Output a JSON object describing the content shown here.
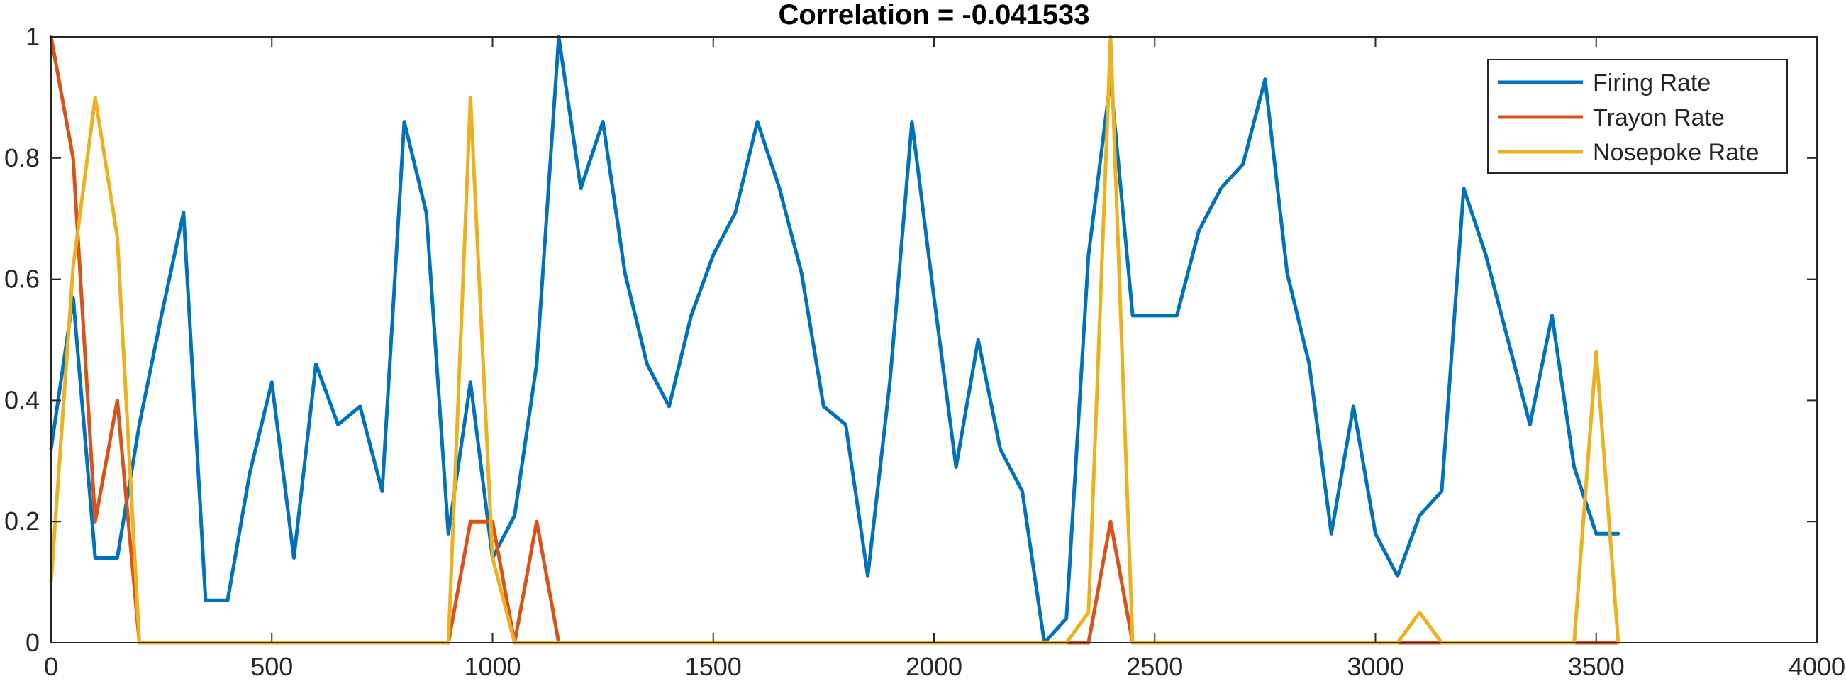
{
  "chart_data": {
    "type": "line",
    "title": "Correlation = -0.041533",
    "xlabel": "",
    "ylabel": "",
    "xlim": [
      0,
      4000
    ],
    "ylim": [
      0,
      1
    ],
    "xticks": [
      0,
      500,
      1000,
      1500,
      2000,
      2500,
      3000,
      3500,
      4000
    ],
    "xtick_labels": [
      "0",
      "500",
      "1000",
      "1500",
      "2000",
      "2500",
      "3000",
      "3500",
      "4000"
    ],
    "yticks": [
      0,
      0.2,
      0.4,
      0.6,
      0.8,
      1
    ],
    "ytick_labels": [
      "0",
      "0.2",
      "0.4",
      "0.6",
      "0.8",
      "1"
    ],
    "grid": false,
    "legend_position": "top-right",
    "x": [
      0,
      50,
      100,
      150,
      200,
      250,
      300,
      350,
      400,
      450,
      500,
      550,
      600,
      650,
      700,
      750,
      800,
      850,
      900,
      950,
      1000,
      1050,
      1100,
      1150,
      1200,
      1250,
      1300,
      1350,
      1400,
      1450,
      1500,
      1550,
      1600,
      1650,
      1700,
      1750,
      1800,
      1850,
      1900,
      1950,
      2000,
      2050,
      2100,
      2150,
      2200,
      2250,
      2300,
      2350,
      2400,
      2450,
      2500,
      2550,
      2600,
      2650,
      2700,
      2750,
      2800,
      2850,
      2900,
      2950,
      3000,
      3050,
      3100,
      3150,
      3200,
      3250,
      3300,
      3350,
      3400,
      3450,
      3500,
      3550
    ],
    "series": [
      {
        "name": "Firing Rate",
        "color": "#0072BD",
        "values": [
          0.32,
          0.57,
          0.14,
          0.14,
          0.36,
          0.54,
          0.71,
          0.07,
          0.07,
          0.28,
          0.43,
          0.14,
          0.46,
          0.36,
          0.39,
          0.25,
          0.86,
          0.71,
          0.18,
          0.43,
          0.14,
          0.21,
          0.46,
          1.0,
          0.75,
          0.86,
          0.61,
          0.46,
          0.39,
          0.54,
          0.64,
          0.71,
          0.86,
          0.75,
          0.61,
          0.39,
          0.36,
          0.11,
          0.43,
          0.86,
          0.57,
          0.29,
          0.5,
          0.32,
          0.25,
          0.0,
          0.04,
          0.64,
          0.93,
          0.54,
          0.54,
          0.54,
          0.68,
          0.75,
          0.79,
          0.93,
          0.61,
          0.46,
          0.18,
          0.39,
          0.18,
          0.11,
          0.21,
          0.25,
          0.75,
          0.64,
          0.5,
          0.36,
          0.54,
          0.29,
          0.18,
          0.18
        ]
      },
      {
        "name": "Trayon Rate",
        "color": "#D95319",
        "values": [
          1.0,
          0.8,
          0.2,
          0.4,
          0,
          0,
          0,
          0,
          0,
          0,
          0,
          0,
          0,
          0,
          0,
          0,
          0,
          0,
          0,
          0.2,
          0.2,
          0,
          0.2,
          0,
          0,
          0,
          0,
          0,
          0,
          0,
          0,
          0,
          0,
          0,
          0,
          0,
          0,
          0,
          0,
          0,
          0,
          0,
          0,
          0,
          0,
          0,
          0,
          0,
          0.2,
          0,
          0,
          0,
          0,
          0,
          0,
          0,
          0,
          0,
          0,
          0,
          0,
          0,
          0,
          0,
          0,
          0,
          0,
          0,
          0,
          0,
          0,
          0
        ]
      },
      {
        "name": "Nosepoke Rate",
        "color": "#EDB120",
        "values": [
          0.1,
          0.62,
          0.9,
          0.67,
          0,
          0,
          0,
          0,
          0,
          0,
          0,
          0,
          0,
          0,
          0,
          0,
          0,
          0,
          0,
          0.9,
          0.14,
          0,
          0,
          0,
          0,
          0,
          0,
          0,
          0,
          0,
          0,
          0,
          0,
          0,
          0,
          0,
          0,
          0,
          0,
          0,
          0,
          0,
          0,
          0,
          0,
          0,
          0,
          0.05,
          1.0,
          0,
          0,
          0,
          0,
          0,
          0,
          0,
          0,
          0,
          0,
          0,
          0,
          0,
          0.05,
          0,
          0,
          0,
          0,
          0,
          0,
          0,
          0.48,
          0
        ]
      }
    ]
  }
}
